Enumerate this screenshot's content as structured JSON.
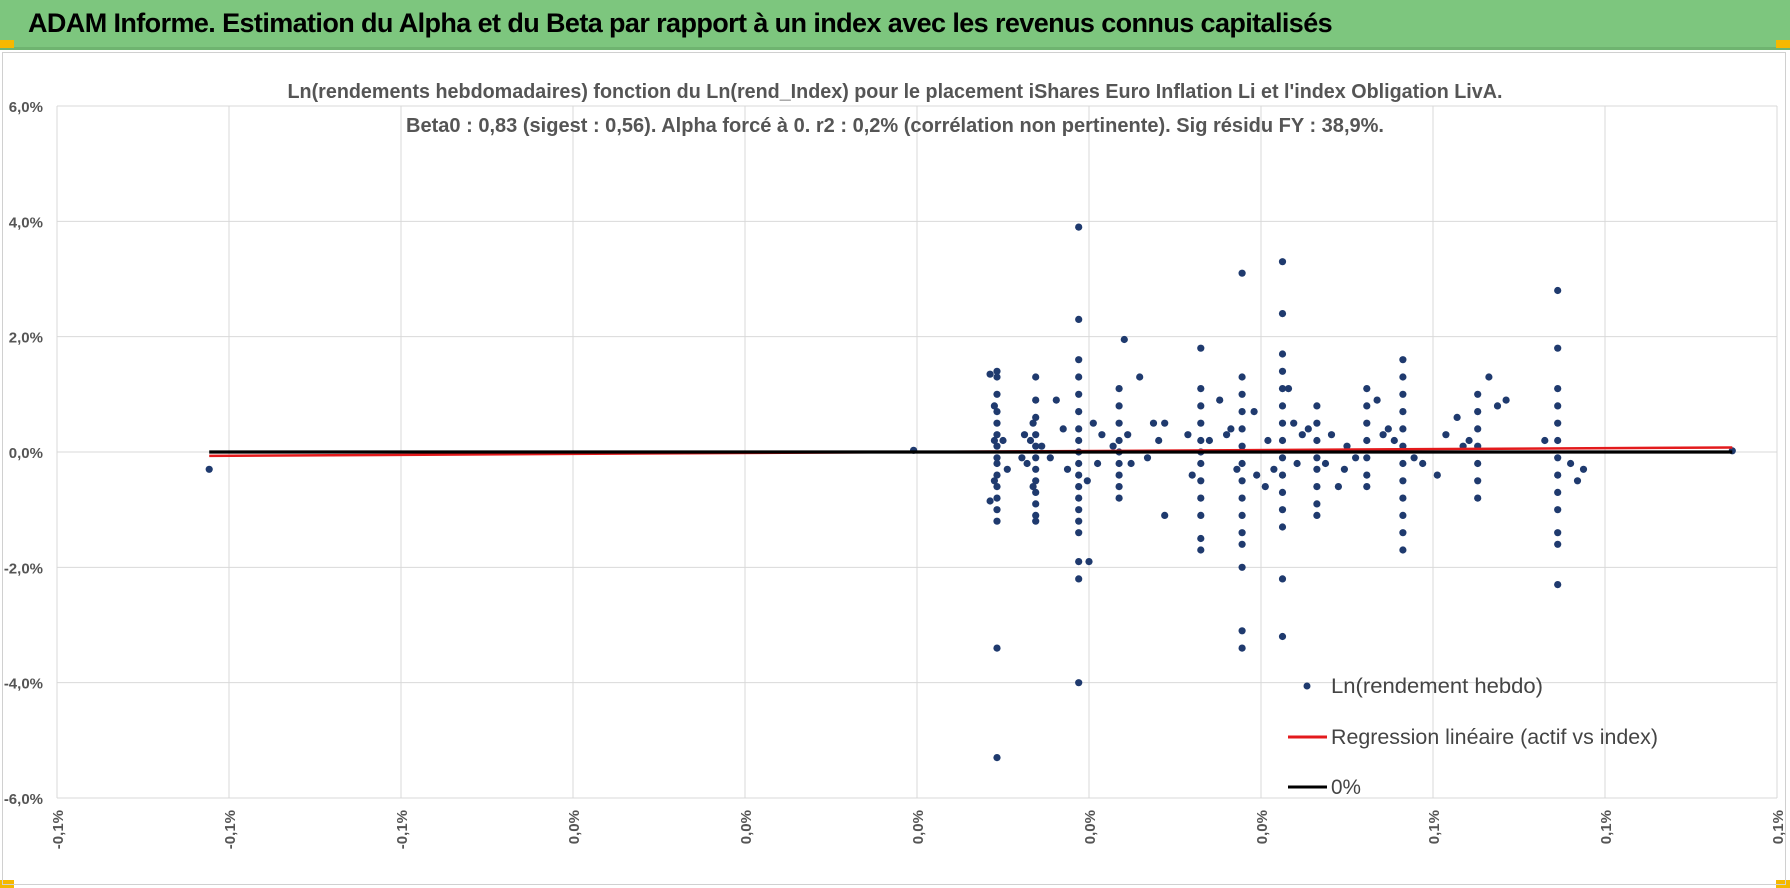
{
  "header": {
    "title": "ADAM Informe. Estimation du Alpha et du Beta par rapport à un index avec les revenus connus capitalisés",
    "background_color": "#7dc67e"
  },
  "chart_data": {
    "type": "scatter",
    "title_line1": "Ln(rendements hebdomadaires) fonction du Ln(rend_Index) pour le placement iShares Euro Inflation Li et l'index Obligation LivA.",
    "title_line2": "Beta0 : 0,83  (sigest : 0,56).  Alpha forcé à 0. r2 : 0,2% (corrélation non pertinente). Sig résidu FY : 38,9%.",
    "xlabel": "",
    "ylabel": "",
    "xlim": [
      -0.1,
      0.1
    ],
    "ylim": [
      -6,
      6
    ],
    "y_ticks": [
      6,
      4,
      2,
      0,
      -2,
      -4,
      -6
    ],
    "y_tick_labels": [
      "6,0%",
      "4,0%",
      "2,0%",
      "0,0%",
      "-2,0%",
      "-4,0%",
      "-6,0%"
    ],
    "x_ticks": [
      -0.1,
      -0.08,
      -0.06,
      -0.04,
      -0.02,
      0,
      0.02,
      0.04,
      0.06,
      0.08,
      0.1
    ],
    "x_tick_labels": [
      "-0,1%",
      "-0,1%",
      "-0,1%",
      "0,0%",
      "0,0%",
      "0,0%",
      "0,0%",
      "0,0%",
      "0,1%",
      "0,1%",
      "0,1%"
    ],
    "grid": true,
    "legend_position": "bottom-right",
    "series": [
      {
        "name": "Ln(rendement hebdo)",
        "kind": "scatter",
        "color": "#1f3a6e",
        "points": [
          [
            -0.0823,
            -0.3
          ],
          [
            -0.0004,
            0.03
          ],
          [
            0.0948,
            0.02
          ],
          [
            0.0093,
            1.4
          ],
          [
            0.0093,
            1.3
          ],
          [
            0.0093,
            1.0
          ],
          [
            0.0093,
            0.7
          ],
          [
            0.0093,
            0.5
          ],
          [
            0.0093,
            0.3
          ],
          [
            0.0093,
            0.1
          ],
          [
            0.0093,
            -0.1
          ],
          [
            0.0093,
            -0.2
          ],
          [
            0.0093,
            -0.4
          ],
          [
            0.0093,
            -0.6
          ],
          [
            0.0093,
            -0.8
          ],
          [
            0.0093,
            -1.0
          ],
          [
            0.0093,
            -1.2
          ],
          [
            0.0093,
            -3.4
          ],
          [
            0.0093,
            -5.3
          ],
          [
            0.009,
            0.8
          ],
          [
            0.009,
            0.2
          ],
          [
            0.009,
            -0.5
          ],
          [
            0.0085,
            1.35
          ],
          [
            0.0085,
            -0.85
          ],
          [
            0.01,
            0.2
          ],
          [
            0.0105,
            -0.3
          ],
          [
            0.0138,
            1.3
          ],
          [
            0.0138,
            0.9
          ],
          [
            0.0138,
            0.6
          ],
          [
            0.0138,
            0.3
          ],
          [
            0.0138,
            0.1
          ],
          [
            0.0138,
            -0.1
          ],
          [
            0.0138,
            -0.3
          ],
          [
            0.0138,
            -0.5
          ],
          [
            0.0138,
            -0.7
          ],
          [
            0.0138,
            -0.9
          ],
          [
            0.0138,
            -1.1
          ],
          [
            0.0138,
            -1.2
          ],
          [
            0.0135,
            0.5
          ],
          [
            0.0135,
            -0.6
          ],
          [
            0.0132,
            0.2
          ],
          [
            0.0128,
            -0.2
          ],
          [
            0.0125,
            0.3
          ],
          [
            0.0122,
            -0.1
          ],
          [
            0.0145,
            0.1
          ],
          [
            0.0188,
            3.9
          ],
          [
            0.0188,
            2.3
          ],
          [
            0.0188,
            1.6
          ],
          [
            0.0188,
            1.3
          ],
          [
            0.0188,
            1.0
          ],
          [
            0.0188,
            0.7
          ],
          [
            0.0188,
            0.4
          ],
          [
            0.0188,
            0.2
          ],
          [
            0.0188,
            0.0
          ],
          [
            0.0188,
            -0.2
          ],
          [
            0.0188,
            -0.4
          ],
          [
            0.0188,
            -0.6
          ],
          [
            0.0188,
            -0.8
          ],
          [
            0.0188,
            -1.0
          ],
          [
            0.0188,
            -1.2
          ],
          [
            0.0188,
            -1.4
          ],
          [
            0.0188,
            -1.9
          ],
          [
            0.0188,
            -2.2
          ],
          [
            0.0188,
            -4.0
          ],
          [
            0.017,
            0.4
          ],
          [
            0.0175,
            -0.3
          ],
          [
            0.0162,
            0.9
          ],
          [
            0.0155,
            -0.1
          ],
          [
            0.02,
            -1.9
          ],
          [
            0.0205,
            0.5
          ],
          [
            0.021,
            -0.2
          ],
          [
            0.0215,
            0.3
          ],
          [
            0.0198,
            -0.5
          ],
          [
            0.0235,
            1.1
          ],
          [
            0.0235,
            0.8
          ],
          [
            0.0235,
            0.5
          ],
          [
            0.0235,
            0.2
          ],
          [
            0.0235,
            0.0
          ],
          [
            0.0235,
            -0.2
          ],
          [
            0.0235,
            -0.4
          ],
          [
            0.0235,
            -0.6
          ],
          [
            0.0235,
            -0.8
          ],
          [
            0.0241,
            1.95
          ],
          [
            0.0249,
            -0.2
          ],
          [
            0.0259,
            1.3
          ],
          [
            0.0228,
            0.1
          ],
          [
            0.0245,
            0.3
          ],
          [
            0.0288,
            -1.1
          ],
          [
            0.0288,
            0.5
          ],
          [
            0.0275,
            0.5
          ],
          [
            0.0268,
            -0.1
          ],
          [
            0.0281,
            0.2
          ],
          [
            0.033,
            1.8
          ],
          [
            0.033,
            1.1
          ],
          [
            0.033,
            0.8
          ],
          [
            0.033,
            0.5
          ],
          [
            0.033,
            0.2
          ],
          [
            0.033,
            0.0
          ],
          [
            0.033,
            -0.2
          ],
          [
            0.033,
            -0.5
          ],
          [
            0.033,
            -0.8
          ],
          [
            0.033,
            -1.1
          ],
          [
            0.033,
            -1.5
          ],
          [
            0.033,
            -1.7
          ],
          [
            0.0315,
            0.3
          ],
          [
            0.034,
            0.2
          ],
          [
            0.0352,
            0.9
          ],
          [
            0.036,
            0.3
          ],
          [
            0.032,
            -0.4
          ],
          [
            0.0378,
            3.1
          ],
          [
            0.0378,
            1.3
          ],
          [
            0.0378,
            1.0
          ],
          [
            0.0378,
            0.7
          ],
          [
            0.0378,
            0.4
          ],
          [
            0.0378,
            0.1
          ],
          [
            0.0378,
            -0.2
          ],
          [
            0.0378,
            -0.5
          ],
          [
            0.0378,
            -0.8
          ],
          [
            0.0378,
            -1.1
          ],
          [
            0.0378,
            -1.4
          ],
          [
            0.0378,
            -1.6
          ],
          [
            0.0378,
            -2.0
          ],
          [
            0.0378,
            -3.1
          ],
          [
            0.0378,
            -3.4
          ],
          [
            0.0365,
            0.4
          ],
          [
            0.0372,
            -0.3
          ],
          [
            0.0392,
            0.7
          ],
          [
            0.0395,
            -0.4
          ],
          [
            0.0405,
            -0.6
          ],
          [
            0.0408,
            0.2
          ],
          [
            0.0415,
            -0.3
          ],
          [
            0.0425,
            3.3
          ],
          [
            0.0425,
            2.4
          ],
          [
            0.0425,
            1.7
          ],
          [
            0.0425,
            1.4
          ],
          [
            0.0425,
            1.1
          ],
          [
            0.0425,
            0.8
          ],
          [
            0.0425,
            0.5
          ],
          [
            0.0425,
            0.2
          ],
          [
            0.0425,
            -0.1
          ],
          [
            0.0425,
            -0.4
          ],
          [
            0.0425,
            -0.7
          ],
          [
            0.0425,
            -1.0
          ],
          [
            0.0425,
            -1.3
          ],
          [
            0.0425,
            -2.2
          ],
          [
            0.0425,
            -3.2
          ],
          [
            0.0432,
            1.1
          ],
          [
            0.0438,
            0.5
          ],
          [
            0.0442,
            -0.2
          ],
          [
            0.0448,
            0.3
          ],
          [
            0.0465,
            0.8
          ],
          [
            0.0465,
            0.5
          ],
          [
            0.0465,
            0.2
          ],
          [
            0.0465,
            -0.1
          ],
          [
            0.0465,
            -0.3
          ],
          [
            0.0465,
            -0.6
          ],
          [
            0.0465,
            -0.9
          ],
          [
            0.0465,
            -1.1
          ],
          [
            0.0455,
            0.4
          ],
          [
            0.0475,
            -0.2
          ],
          [
            0.0482,
            0.3
          ],
          [
            0.049,
            -0.6
          ],
          [
            0.0497,
            -0.3
          ],
          [
            0.05,
            0.1
          ],
          [
            0.0523,
            1.1
          ],
          [
            0.0523,
            0.8
          ],
          [
            0.0523,
            0.5
          ],
          [
            0.0523,
            0.2
          ],
          [
            0.0523,
            -0.1
          ],
          [
            0.0523,
            -0.4
          ],
          [
            0.0523,
            -0.6
          ],
          [
            0.051,
            -0.1
          ],
          [
            0.0535,
            0.9
          ],
          [
            0.0542,
            0.3
          ],
          [
            0.0548,
            0.4
          ],
          [
            0.0565,
            1.6
          ],
          [
            0.0565,
            1.3
          ],
          [
            0.0565,
            1.0
          ],
          [
            0.0565,
            0.7
          ],
          [
            0.0565,
            0.4
          ],
          [
            0.0565,
            0.1
          ],
          [
            0.0565,
            -0.2
          ],
          [
            0.0565,
            -0.5
          ],
          [
            0.0565,
            -0.8
          ],
          [
            0.0565,
            -1.1
          ],
          [
            0.0565,
            -1.4
          ],
          [
            0.0565,
            -1.7
          ],
          [
            0.0555,
            0.2
          ],
          [
            0.0578,
            -0.1
          ],
          [
            0.0588,
            -0.2
          ],
          [
            0.0605,
            -0.4
          ],
          [
            0.0615,
            0.3
          ],
          [
            0.0628,
            0.6
          ],
          [
            0.0635,
            0.1
          ],
          [
            0.0642,
            0.2
          ],
          [
            0.0652,
            1.0
          ],
          [
            0.0652,
            0.7
          ],
          [
            0.0652,
            0.4
          ],
          [
            0.0652,
            0.1
          ],
          [
            0.0652,
            -0.2
          ],
          [
            0.0652,
            -0.5
          ],
          [
            0.0652,
            -0.8
          ],
          [
            0.0665,
            1.3
          ],
          [
            0.0675,
            0.8
          ],
          [
            0.0685,
            0.9
          ],
          [
            0.0745,
            2.8
          ],
          [
            0.0745,
            1.8
          ],
          [
            0.0745,
            1.1
          ],
          [
            0.0745,
            0.8
          ],
          [
            0.0745,
            0.5
          ],
          [
            0.0745,
            0.2
          ],
          [
            0.0745,
            -0.1
          ],
          [
            0.0745,
            -0.4
          ],
          [
            0.0745,
            -0.7
          ],
          [
            0.0745,
            -1.0
          ],
          [
            0.0745,
            -1.4
          ],
          [
            0.0745,
            -1.6
          ],
          [
            0.0745,
            -2.3
          ],
          [
            0.073,
            0.2
          ],
          [
            0.076,
            -0.2
          ],
          [
            0.0768,
            -0.5
          ],
          [
            0.0775,
            -0.3
          ]
        ]
      },
      {
        "name": "Regression linéaire (actif vs index)",
        "kind": "line",
        "color": "#e31a1c",
        "x": [
          -0.0823,
          0.0948
        ],
        "y": [
          -0.068,
          0.079
        ]
      },
      {
        "name": "0%",
        "kind": "line",
        "color": "#000000",
        "x": [
          -0.0823,
          0.0948
        ],
        "y": [
          0,
          0
        ]
      }
    ]
  }
}
